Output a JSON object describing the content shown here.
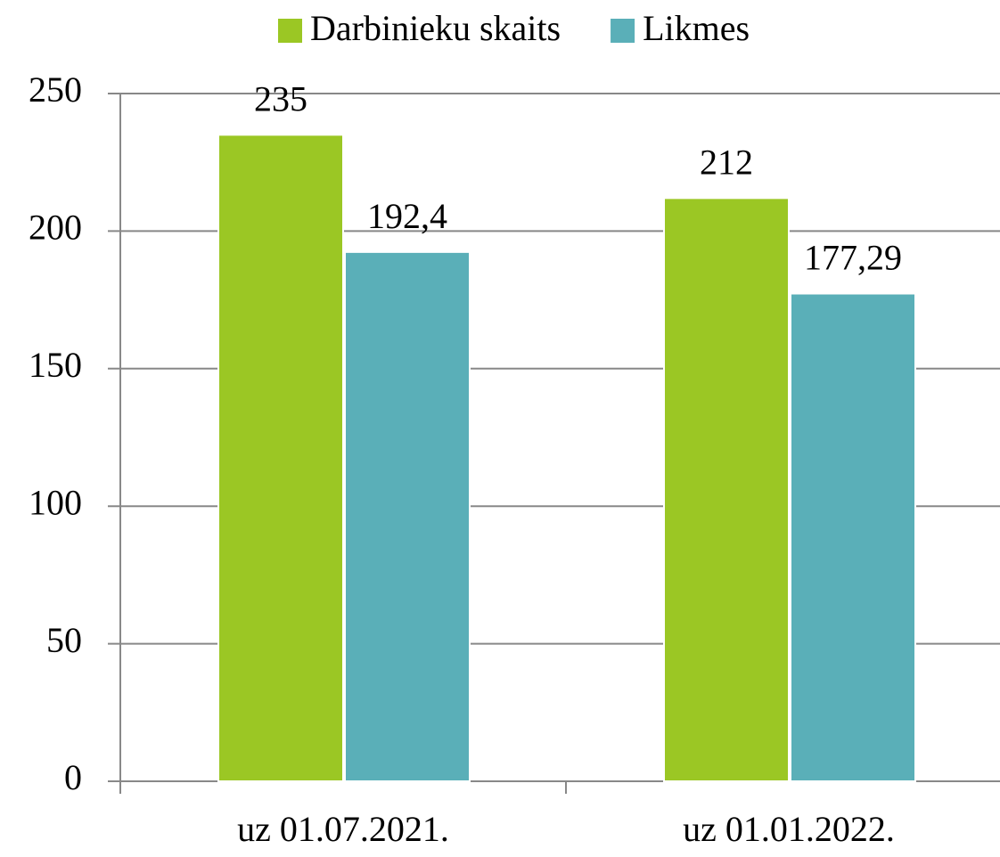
{
  "chart_data": {
    "type": "bar",
    "categories": [
      "uz 01.07.2021.",
      "uz 01.01.2022."
    ],
    "series": [
      {
        "name": "Darbinieku skaits",
        "color": "#9bc724",
        "values": [
          235,
          212
        ]
      },
      {
        "name": "Likmes",
        "color": "#5aafb8",
        "values": [
          192.4,
          177.29
        ],
        "value_labels": [
          "192,4",
          "177,29"
        ]
      }
    ],
    "ylim": [
      0,
      250
    ],
    "yticks": [
      0,
      50,
      100,
      150,
      200,
      250
    ],
    "grid": true,
    "legend": "top"
  }
}
